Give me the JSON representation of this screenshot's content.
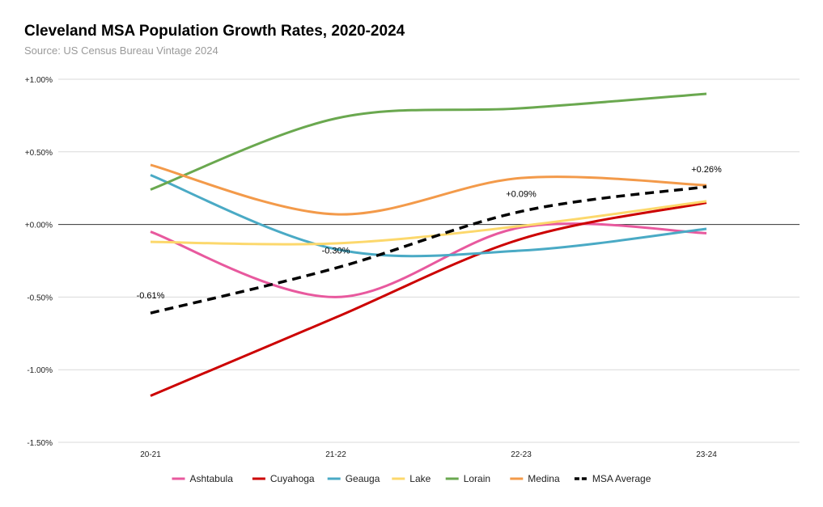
{
  "header": {
    "title": "Cleveland MSA Population Growth Rates, 2020-2024",
    "subtitle": "Source: US Census Bureau Vintage 2024"
  },
  "chart_data": {
    "type": "line",
    "title": "Cleveland MSA Population Growth Rates, 2020-2024",
    "subtitle": "Source: US Census Bureau Vintage 2024",
    "xlabel": "",
    "ylabel": "",
    "categories": [
      "20-21",
      "21-22",
      "22-23",
      "23-24"
    ],
    "ylim": [
      -1.5,
      1.0
    ],
    "yticks": [
      1.0,
      0.5,
      0.0,
      -0.5,
      -1.0,
      -1.5
    ],
    "ytick_labels": [
      "+1.00%",
      "+0.50%",
      "+0.00%",
      "-0.50%",
      "-1.00%",
      "-1.50%"
    ],
    "grid": true,
    "smooth": true,
    "legend_position": "bottom",
    "series": [
      {
        "name": "Ashtabula",
        "color": "#e8599e",
        "dash": false,
        "values": [
          -0.05,
          -0.5,
          -0.02,
          -0.06
        ]
      },
      {
        "name": "Cuyahoga",
        "color": "#cc0000",
        "dash": false,
        "values": [
          -1.18,
          -0.64,
          -0.1,
          0.15
        ]
      },
      {
        "name": "Geauga",
        "color": "#4aaac5",
        "dash": false,
        "values": [
          0.34,
          -0.17,
          -0.18,
          -0.03
        ]
      },
      {
        "name": "Lake",
        "color": "#fcd86c",
        "dash": false,
        "values": [
          -0.12,
          -0.13,
          -0.01,
          0.16
        ]
      },
      {
        "name": "Lorain",
        "color": "#6aa84f",
        "dash": false,
        "values": [
          0.24,
          0.73,
          0.8,
          0.9
        ]
      },
      {
        "name": "Medina",
        "color": "#f39a4a",
        "dash": false,
        "values": [
          0.41,
          0.07,
          0.32,
          0.27
        ]
      },
      {
        "name": "MSA Average",
        "color": "#000000",
        "dash": true,
        "values": [
          -0.61,
          -0.3,
          0.09,
          0.26
        ]
      }
    ],
    "annotations": [
      {
        "series": "MSA Average",
        "index": 0,
        "text": "-0.61%"
      },
      {
        "series": "MSA Average",
        "index": 1,
        "text": "-0.30%"
      },
      {
        "series": "MSA Average",
        "index": 2,
        "text": "+0.09%"
      },
      {
        "series": "MSA Average",
        "index": 3,
        "text": "+0.26%"
      }
    ]
  }
}
